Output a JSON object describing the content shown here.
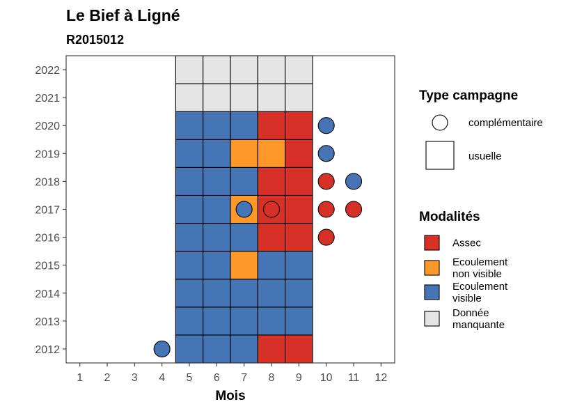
{
  "chart_data": {
    "type": "heatmap",
    "title": "Le Bief à Ligné",
    "subtitle": "R2015012",
    "xlabel": "Mois",
    "ylabel": "",
    "x_ticks": [
      1,
      2,
      3,
      4,
      5,
      6,
      7,
      8,
      9,
      10,
      11,
      12
    ],
    "y_ticks": [
      2012,
      2013,
      2014,
      2015,
      2016,
      2017,
      2018,
      2019,
      2020,
      2021,
      2022
    ],
    "xlim": [
      0.5,
      12.5
    ],
    "ylim": [
      2011.5,
      2022.5
    ],
    "grid": false,
    "legend_placement": "right",
    "legend_type": {
      "title": "Type campagne",
      "items": [
        {
          "key": "complementaire",
          "label": "complémentaire"
        },
        {
          "key": "usuelle",
          "label": "usuelle"
        }
      ]
    },
    "legend_modalites": {
      "title": "Modalités",
      "items": [
        {
          "key": "assec",
          "label_lines": [
            "Assec"
          ],
          "color": "#D73027"
        },
        {
          "key": "ecoulement_non_visible",
          "label_lines": [
            "Ecoulement",
            "non visible"
          ],
          "color": "#FE9929"
        },
        {
          "key": "ecoulement_visible",
          "label_lines": [
            "Ecoulement",
            "visible"
          ],
          "color": "#4575B4"
        },
        {
          "key": "donnee_manquante",
          "label_lines": [
            "Donnée",
            "manquante"
          ],
          "color": "#E5E5E5"
        }
      ]
    },
    "usual_observations": [
      {
        "year": 2012,
        "months": [
          5,
          6,
          7,
          8,
          9
        ],
        "values": [
          "ecoulement_visible",
          "ecoulement_visible",
          "ecoulement_visible",
          "assec",
          "assec"
        ]
      },
      {
        "year": 2013,
        "months": [
          5,
          6,
          7,
          8,
          9
        ],
        "values": [
          "ecoulement_visible",
          "ecoulement_visible",
          "ecoulement_visible",
          "ecoulement_visible",
          "ecoulement_visible"
        ]
      },
      {
        "year": 2014,
        "months": [
          5,
          6,
          7,
          8,
          9
        ],
        "values": [
          "ecoulement_visible",
          "ecoulement_visible",
          "ecoulement_visible",
          "ecoulement_visible",
          "ecoulement_visible"
        ]
      },
      {
        "year": 2015,
        "months": [
          5,
          6,
          7,
          8,
          9
        ],
        "values": [
          "ecoulement_visible",
          "ecoulement_visible",
          "ecoulement_non_visible",
          "ecoulement_visible",
          "ecoulement_visible"
        ]
      },
      {
        "year": 2016,
        "months": [
          5,
          6,
          7,
          8,
          9
        ],
        "values": [
          "ecoulement_visible",
          "ecoulement_visible",
          "ecoulement_visible",
          "assec",
          "assec"
        ]
      },
      {
        "year": 2017,
        "months": [
          5,
          6,
          7,
          8,
          9
        ],
        "values": [
          "ecoulement_visible",
          "ecoulement_visible",
          "ecoulement_non_visible",
          "assec",
          "assec"
        ]
      },
      {
        "year": 2018,
        "months": [
          5,
          6,
          7,
          8,
          9
        ],
        "values": [
          "ecoulement_visible",
          "ecoulement_visible",
          "ecoulement_visible",
          "assec",
          "assec"
        ]
      },
      {
        "year": 2019,
        "months": [
          5,
          6,
          7,
          8,
          9
        ],
        "values": [
          "ecoulement_visible",
          "ecoulement_visible",
          "ecoulement_non_visible",
          "ecoulement_non_visible",
          "assec"
        ]
      },
      {
        "year": 2020,
        "months": [
          5,
          6,
          7,
          8,
          9
        ],
        "values": [
          "ecoulement_visible",
          "ecoulement_visible",
          "ecoulement_visible",
          "assec",
          "assec"
        ]
      },
      {
        "year": 2021,
        "months": [
          5,
          6,
          7,
          8,
          9
        ],
        "values": [
          "donnee_manquante",
          "donnee_manquante",
          "donnee_manquante",
          "donnee_manquante",
          "donnee_manquante"
        ]
      },
      {
        "year": 2022,
        "months": [
          5,
          6,
          7,
          8,
          9
        ],
        "values": [
          "donnee_manquante",
          "donnee_manquante",
          "donnee_manquante",
          "donnee_manquante",
          "donnee_manquante"
        ]
      }
    ],
    "complementary_observations": [
      {
        "year": 2012,
        "month": 4,
        "value": "ecoulement_visible"
      },
      {
        "year": 2016,
        "month": 10,
        "value": "assec"
      },
      {
        "year": 2017,
        "month": 7,
        "value": "ecoulement_visible"
      },
      {
        "year": 2017,
        "month": 8,
        "value": "assec"
      },
      {
        "year": 2017,
        "month": 10,
        "value": "assec"
      },
      {
        "year": 2017,
        "month": 11,
        "value": "assec"
      },
      {
        "year": 2018,
        "month": 10,
        "value": "assec"
      },
      {
        "year": 2018,
        "month": 11,
        "value": "ecoulement_visible"
      },
      {
        "year": 2019,
        "month": 10,
        "value": "ecoulement_visible"
      },
      {
        "year": 2020,
        "month": 10,
        "value": "ecoulement_visible"
      }
    ]
  }
}
